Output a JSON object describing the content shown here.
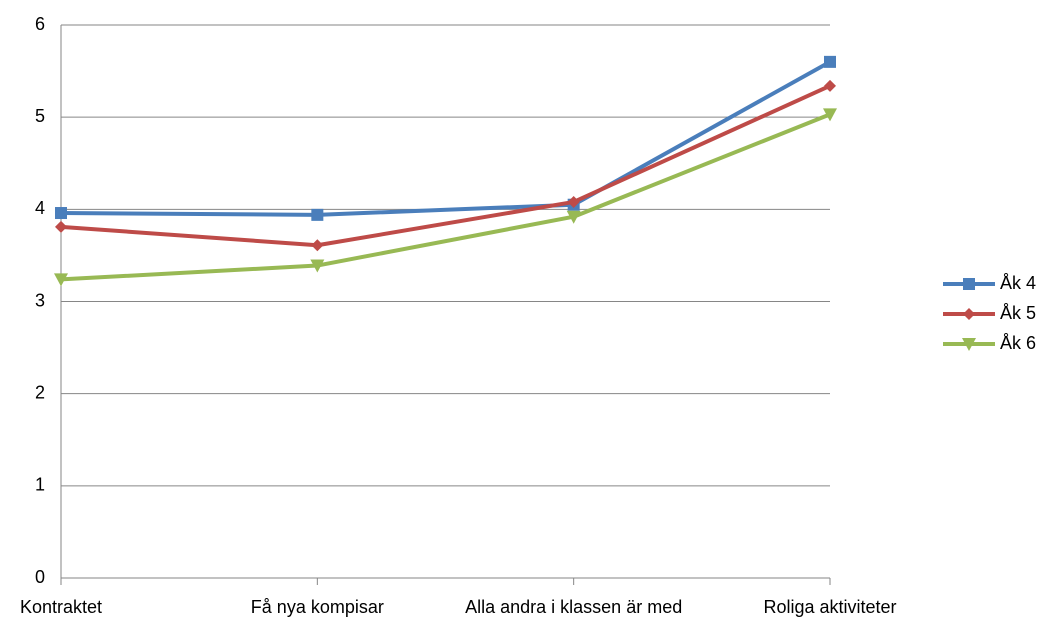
{
  "chart_data": {
    "type": "line",
    "categories": [
      "Kontraktet",
      "Få nya kompisar",
      "Alla andra i klassen är med",
      "Roliga aktiviteter"
    ],
    "series": [
      {
        "name": "Åk 4",
        "color": "#4a7ebb",
        "marker": "square",
        "values": [
          3.96,
          3.94,
          4.05,
          5.6
        ]
      },
      {
        "name": "Åk 5",
        "color": "#be4b48",
        "marker": "diamond",
        "values": [
          3.81,
          3.61,
          4.08,
          5.34
        ]
      },
      {
        "name": "Åk 6",
        "color": "#98b954",
        "marker": "triangle-down",
        "values": [
          3.24,
          3.39,
          3.92,
          5.03
        ]
      }
    ],
    "ylim": [
      0,
      6
    ],
    "yticks": [
      0,
      1,
      2,
      3,
      4,
      5,
      6
    ],
    "grid": true,
    "legend": "right"
  }
}
